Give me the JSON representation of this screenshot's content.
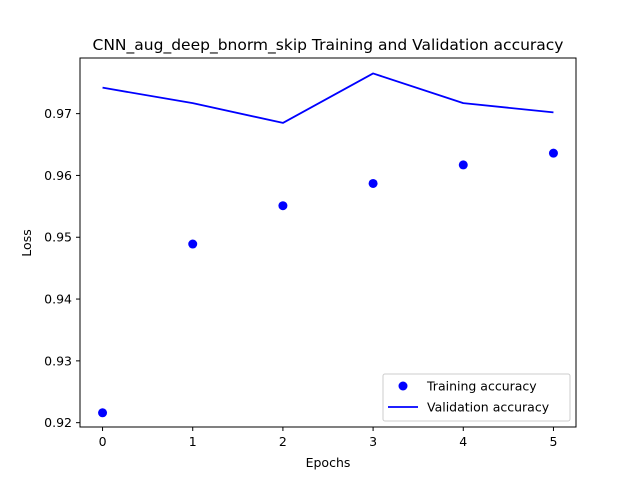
{
  "chart_data": {
    "type": "line",
    "title": "CNN_aug_deep_bnorm_skip Training and Validation accuracy",
    "xlabel": "Epochs",
    "ylabel": "Loss",
    "x": [
      0,
      1,
      2,
      3,
      4,
      5
    ],
    "xticks": [
      "0",
      "1",
      "2",
      "3",
      "4",
      "5"
    ],
    "yticks": [
      "0.92",
      "0.93",
      "0.94",
      "0.95",
      "0.96",
      "0.97"
    ],
    "xlim": [
      -0.25,
      5.25
    ],
    "ylim": [
      0.9193,
      0.979
    ],
    "grid": false,
    "legend_position": "lower-right",
    "series": [
      {
        "name": "Training accuracy",
        "style": "markers",
        "color": "#0000ff",
        "values": [
          0.9216,
          0.9489,
          0.9551,
          0.9587,
          0.9617,
          0.9636
        ]
      },
      {
        "name": "Validation accuracy",
        "style": "line",
        "color": "#0000ff",
        "values": [
          0.9742,
          0.9717,
          0.9685,
          0.9765,
          0.9717,
          0.9702
        ]
      }
    ]
  }
}
